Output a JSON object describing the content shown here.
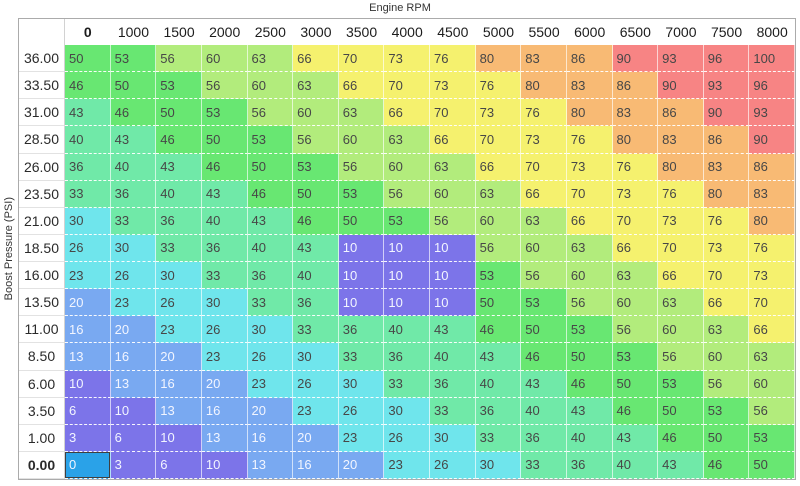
{
  "axes": {
    "top_label": "Engine RPM",
    "left_label": "Boost Pressure (PSI)"
  },
  "table": {
    "col_headers": [
      "0",
      "1000",
      "1500",
      "2000",
      "2500",
      "3000",
      "3500",
      "4000",
      "4500",
      "5000",
      "5500",
      "6000",
      "6500",
      "7000",
      "7500",
      "8000"
    ],
    "row_headers": [
      "36.00",
      "33.50",
      "31.00",
      "28.50",
      "26.00",
      "23.50",
      "21.00",
      "18.50",
      "16.00",
      "13.50",
      "11.00",
      "8.50",
      "6.00",
      "3.50",
      "1.00",
      "0.00"
    ],
    "values": [
      [
        50,
        53,
        56,
        60,
        63,
        66,
        70,
        73,
        76,
        80,
        83,
        86,
        90,
        93,
        96,
        100
      ],
      [
        46,
        50,
        53,
        56,
        60,
        63,
        66,
        70,
        73,
        76,
        80,
        83,
        86,
        90,
        93,
        96
      ],
      [
        43,
        46,
        50,
        53,
        56,
        60,
        63,
        66,
        70,
        73,
        76,
        80,
        83,
        86,
        90,
        93
      ],
      [
        40,
        43,
        46,
        50,
        53,
        56,
        60,
        63,
        66,
        70,
        73,
        76,
        80,
        83,
        86,
        90
      ],
      [
        36,
        40,
        43,
        46,
        50,
        53,
        56,
        60,
        63,
        66,
        70,
        73,
        76,
        80,
        83,
        86
      ],
      [
        33,
        36,
        40,
        43,
        46,
        50,
        53,
        56,
        60,
        63,
        66,
        70,
        73,
        76,
        80,
        83
      ],
      [
        30,
        33,
        36,
        40,
        43,
        46,
        50,
        53,
        56,
        60,
        63,
        66,
        70,
        73,
        76,
        80
      ],
      [
        26,
        30,
        33,
        36,
        40,
        43,
        10,
        10,
        10,
        56,
        60,
        63,
        66,
        70,
        73,
        76
      ],
      [
        23,
        26,
        30,
        33,
        36,
        40,
        10,
        10,
        10,
        53,
        56,
        60,
        63,
        66,
        70,
        73
      ],
      [
        20,
        23,
        26,
        30,
        33,
        36,
        10,
        10,
        10,
        50,
        53,
        56,
        60,
        63,
        66,
        70
      ],
      [
        16,
        20,
        23,
        26,
        30,
        33,
        36,
        40,
        43,
        46,
        50,
        53,
        56,
        60,
        63,
        66
      ],
      [
        13,
        16,
        20,
        23,
        26,
        30,
        33,
        36,
        40,
        43,
        46,
        50,
        53,
        56,
        60,
        63
      ],
      [
        10,
        13,
        16,
        20,
        23,
        26,
        30,
        33,
        36,
        40,
        43,
        46,
        50,
        53,
        56,
        60
      ],
      [
        6,
        10,
        13,
        16,
        20,
        23,
        26,
        30,
        33,
        36,
        40,
        43,
        46,
        50,
        53,
        56
      ],
      [
        3,
        6,
        10,
        13,
        16,
        20,
        23,
        26,
        30,
        33,
        36,
        40,
        43,
        46,
        50,
        53
      ],
      [
        0,
        3,
        6,
        10,
        13,
        16,
        20,
        23,
        26,
        30,
        33,
        36,
        40,
        43,
        46,
        50
      ]
    ],
    "selected_cell": {
      "row_index": 15,
      "col_index": 0,
      "row_header": "0.00",
      "col_header": "0",
      "value": 0
    }
  },
  "colors": {
    "selected_bg": "#2aa2e8",
    "light_text_max": 20,
    "bands": [
      {
        "max": 2,
        "bg": "#2aa2e8"
      },
      {
        "max": 10,
        "bg": "#7c74e9"
      },
      {
        "max": 20,
        "bg": "#79a9f1"
      },
      {
        "max": 30,
        "bg": "#6fe5ec"
      },
      {
        "max": 43,
        "bg": "#70e9a8"
      },
      {
        "max": 53,
        "bg": "#68e772"
      },
      {
        "max": 63,
        "bg": "#b2ec7c"
      },
      {
        "max": 76,
        "bg": "#f5f16e"
      },
      {
        "max": 86,
        "bg": "#f8ba74"
      },
      {
        "max": 100,
        "bg": "#f78484"
      }
    ]
  }
}
